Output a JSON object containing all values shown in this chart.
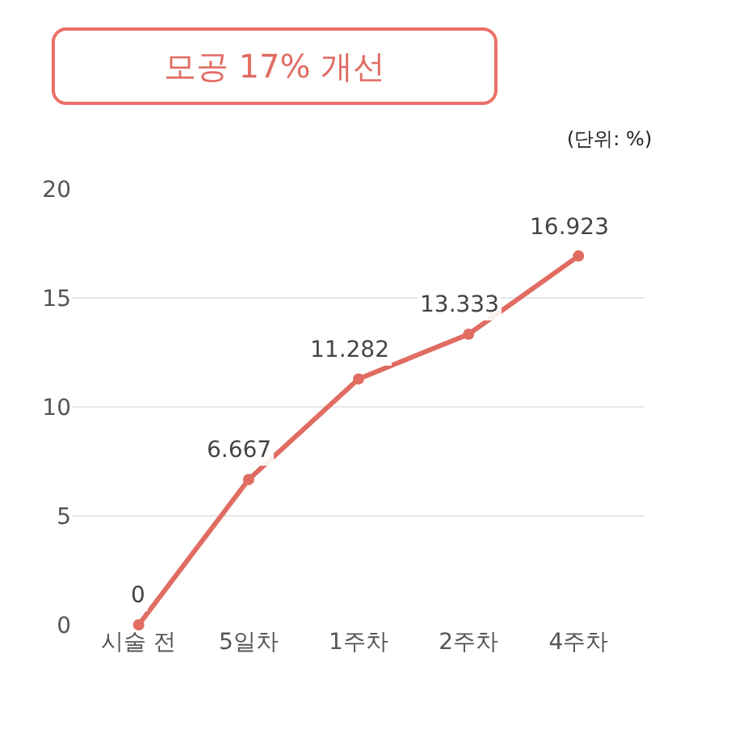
{
  "chart_data": {
    "type": "line",
    "title": "모공 17% 개선",
    "annotations": [
      "(단위: %)"
    ],
    "categories": [
      "시술 전",
      "5일차",
      "1주차",
      "2주차",
      "4주차"
    ],
    "series": [
      {
        "color": "#e06c62",
        "values": [
          0,
          6.667,
          11.282,
          13.333,
          16.923
        ]
      }
    ],
    "ylim": [
      0,
      20
    ],
    "yticks": [
      0,
      5,
      10,
      15,
      20
    ],
    "grid": "y",
    "marker": "circle",
    "line_style": "solid",
    "data_labels": true
  }
}
